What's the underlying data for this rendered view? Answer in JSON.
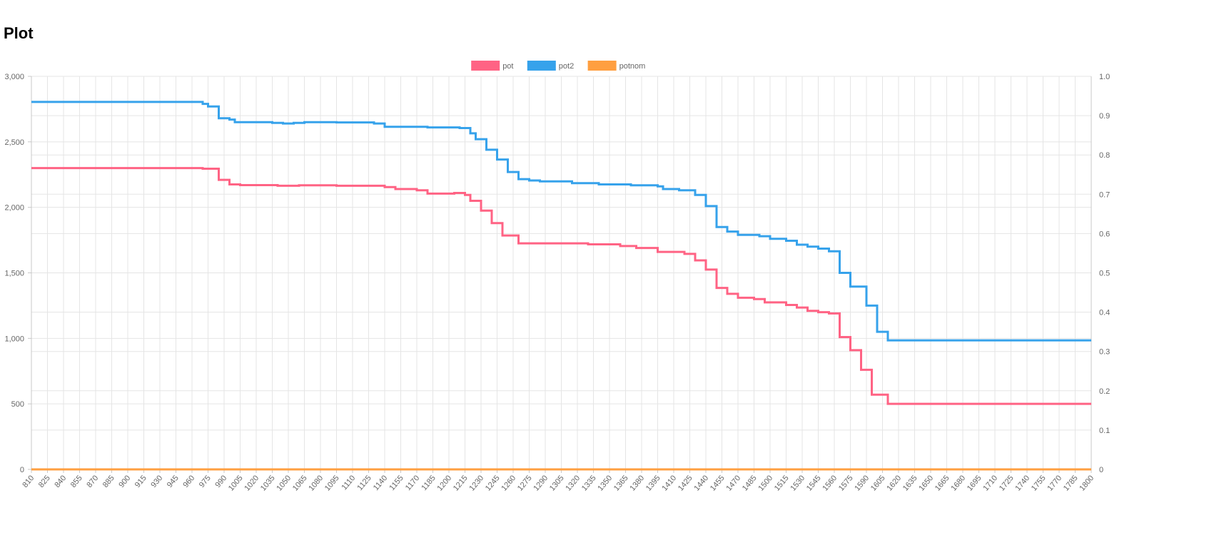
{
  "page": {
    "title": "Plot"
  },
  "chart_data": {
    "type": "line",
    "stepped": true,
    "title": "",
    "xlabel": "",
    "ylabel": "",
    "xlim": [
      810,
      1800
    ],
    "ylim_left": [
      0,
      3000
    ],
    "ylim_right": [
      0,
      1.0
    ],
    "left_ticks": [
      "0",
      "500",
      "1,000",
      "1,500",
      "2,000",
      "2,500",
      "3,000"
    ],
    "left_tick_values": [
      0,
      500,
      1000,
      1500,
      2000,
      2500,
      3000
    ],
    "right_ticks": [
      "0",
      "0.1",
      "0.2",
      "0.3",
      "0.4",
      "0.5",
      "0.6",
      "0.7",
      "0.8",
      "0.9",
      "1.0"
    ],
    "right_tick_values": [
      0,
      0.1,
      0.2,
      0.3,
      0.4,
      0.5,
      0.6,
      0.7,
      0.8,
      0.9,
      1.0
    ],
    "x_ticks": [
      810,
      825,
      840,
      855,
      870,
      885,
      900,
      915,
      930,
      945,
      960,
      975,
      990,
      1005,
      1020,
      1035,
      1050,
      1065,
      1080,
      1095,
      1110,
      1125,
      1140,
      1155,
      1170,
      1185,
      1200,
      1215,
      1230,
      1245,
      1260,
      1275,
      1290,
      1305,
      1320,
      1335,
      1350,
      1365,
      1380,
      1395,
      1410,
      1425,
      1440,
      1455,
      1470,
      1485,
      1500,
      1515,
      1530,
      1545,
      1560,
      1575,
      1590,
      1605,
      1620,
      1635,
      1650,
      1665,
      1680,
      1695,
      1710,
      1725,
      1740,
      1755,
      1770,
      1785,
      1800
    ],
    "grid": true,
    "legend_position": "top",
    "series": [
      {
        "name": "pot",
        "color": "#ff6384",
        "axis": "left",
        "points": [
          [
            810,
            2300
          ],
          [
            965,
            2300
          ],
          [
            970,
            2295
          ],
          [
            985,
            2210
          ],
          [
            995,
            2175
          ],
          [
            1005,
            2170
          ],
          [
            1040,
            2165
          ],
          [
            1060,
            2168
          ],
          [
            1095,
            2165
          ],
          [
            1140,
            2155
          ],
          [
            1150,
            2140
          ],
          [
            1170,
            2130
          ],
          [
            1180,
            2105
          ],
          [
            1205,
            2110
          ],
          [
            1215,
            2095
          ],
          [
            1220,
            2050
          ],
          [
            1230,
            1975
          ],
          [
            1240,
            1880
          ],
          [
            1250,
            1785
          ],
          [
            1265,
            1725
          ],
          [
            1330,
            1718
          ],
          [
            1360,
            1705
          ],
          [
            1375,
            1690
          ],
          [
            1395,
            1660
          ],
          [
            1420,
            1645
          ],
          [
            1430,
            1595
          ],
          [
            1440,
            1525
          ],
          [
            1450,
            1385
          ],
          [
            1460,
            1340
          ],
          [
            1470,
            1310
          ],
          [
            1485,
            1300
          ],
          [
            1495,
            1275
          ],
          [
            1515,
            1255
          ],
          [
            1525,
            1235
          ],
          [
            1535,
            1210
          ],
          [
            1545,
            1200
          ],
          [
            1555,
            1190
          ],
          [
            1565,
            1010
          ],
          [
            1575,
            910
          ],
          [
            1585,
            760
          ],
          [
            1595,
            570
          ],
          [
            1610,
            500
          ],
          [
            1800,
            500
          ]
        ]
      },
      {
        "name": "pot2",
        "color": "#36a2eb",
        "axis": "left",
        "points": [
          [
            810,
            2805
          ],
          [
            965,
            2805
          ],
          [
            970,
            2790
          ],
          [
            975,
            2770
          ],
          [
            985,
            2680
          ],
          [
            995,
            2670
          ],
          [
            1000,
            2650
          ],
          [
            1035,
            2645
          ],
          [
            1045,
            2640
          ],
          [
            1055,
            2645
          ],
          [
            1065,
            2650
          ],
          [
            1095,
            2648
          ],
          [
            1130,
            2640
          ],
          [
            1140,
            2615
          ],
          [
            1180,
            2610
          ],
          [
            1210,
            2605
          ],
          [
            1220,
            2565
          ],
          [
            1225,
            2520
          ],
          [
            1235,
            2440
          ],
          [
            1245,
            2365
          ],
          [
            1255,
            2270
          ],
          [
            1265,
            2215
          ],
          [
            1275,
            2205
          ],
          [
            1285,
            2198
          ],
          [
            1315,
            2185
          ],
          [
            1340,
            2175
          ],
          [
            1370,
            2168
          ],
          [
            1395,
            2160
          ],
          [
            1400,
            2140
          ],
          [
            1415,
            2130
          ],
          [
            1430,
            2095
          ],
          [
            1440,
            2010
          ],
          [
            1450,
            1850
          ],
          [
            1460,
            1815
          ],
          [
            1470,
            1790
          ],
          [
            1490,
            1780
          ],
          [
            1500,
            1760
          ],
          [
            1515,
            1745
          ],
          [
            1525,
            1715
          ],
          [
            1535,
            1700
          ],
          [
            1545,
            1685
          ],
          [
            1555,
            1665
          ],
          [
            1565,
            1500
          ],
          [
            1575,
            1395
          ],
          [
            1590,
            1250
          ],
          [
            1600,
            1050
          ],
          [
            1610,
            985
          ],
          [
            1800,
            985
          ]
        ]
      },
      {
        "name": "potnom",
        "color": "#ff9f40",
        "axis": "left",
        "points": [
          [
            810,
            0
          ],
          [
            1800,
            0
          ]
        ]
      }
    ]
  }
}
